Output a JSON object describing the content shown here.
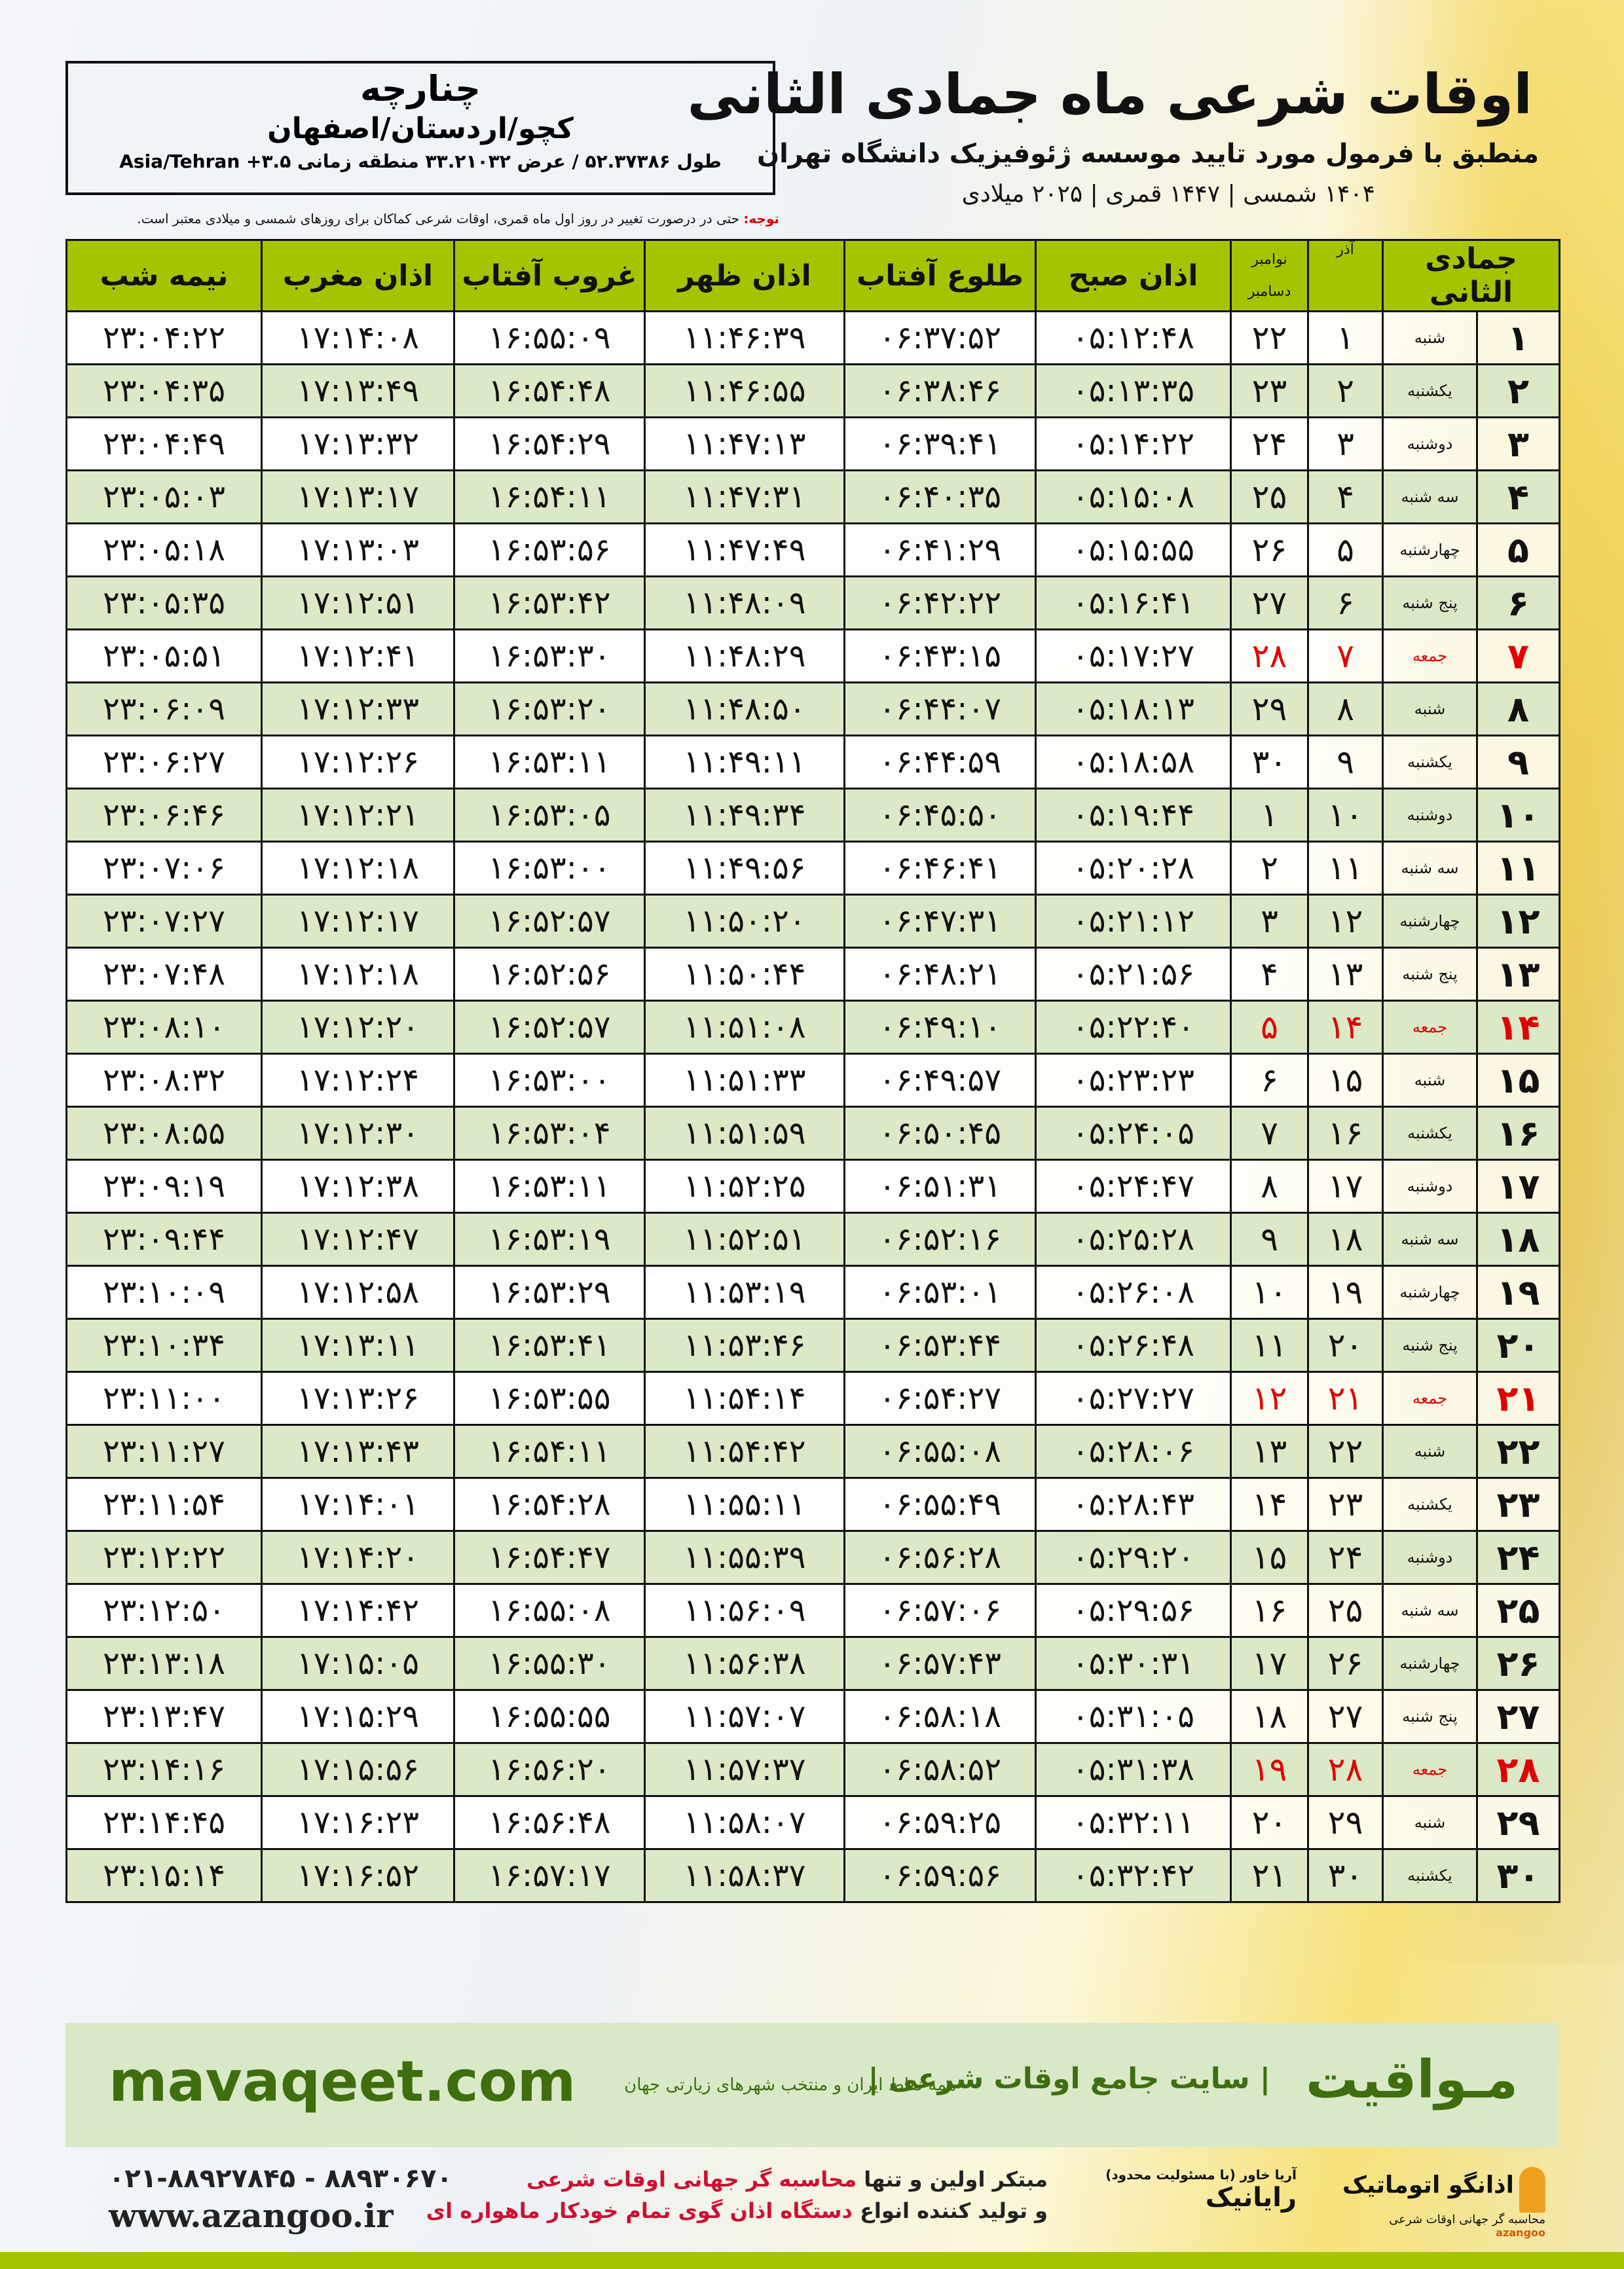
{
  "location": {
    "city": "چنارچه",
    "province": "کچو/اردستان/اصفهان",
    "coords": "طول ۵۲.۳۷۳۸۶ / عرض ۳۳.۲۱۰۳۲ منطقه زمانی ۳.۵+ Asia/Tehran"
  },
  "header": {
    "title": "اوقات شرعی ماه جمادی الثانی",
    "subtitle": "منطبق با فرمول مورد تایید موسسه ژئوفیزیک دانشگاه تهران",
    "years": "۱۴۰۴ شمسی | ۱۴۴۷ قمری | ۲۰۲۵ میلادی"
  },
  "note": {
    "label": "توجه:",
    "text": " حتی در درصورت تغییر در روز اول ماه قمری، اوقات شرعی کماکان برای روزهای شمسی و میلادی معتبر است."
  },
  "colors": {
    "header_green": "#a5c400",
    "alt_row": "#dbe9c6",
    "friday": "#e00000",
    "brand_green": "#3f6e0e"
  },
  "table": {
    "headers": {
      "month": "جمادی الثانی",
      "azar": "آذر",
      "greg_top": "نوامبر",
      "greg_bottom": "دسامبر",
      "fajr": "اذان صبح",
      "sunrise": "طلوع آفتاب",
      "dhuhr": "اذان ظهر",
      "sunset": "غروب آفتاب",
      "maghrib": "اذان مغرب",
      "midnight": "نیمه شب"
    },
    "rows": [
      [
        "۱",
        "شنبه",
        "۱",
        "۲۲",
        "۰۵:۱۲:۴۸",
        "۰۶:۳۷:۵۲",
        "۱۱:۴۶:۳۹",
        "۱۶:۵۵:۰۹",
        "۱۷:۱۴:۰۸",
        "۲۳:۰۴:۲۲"
      ],
      [
        "۲",
        "یکشنبه",
        "۲",
        "۲۳",
        "۰۵:۱۳:۳۵",
        "۰۶:۳۸:۴۶",
        "۱۱:۴۶:۵۵",
        "۱۶:۵۴:۴۸",
        "۱۷:۱۳:۴۹",
        "۲۳:۰۴:۳۵"
      ],
      [
        "۳",
        "دوشنبه",
        "۳",
        "۲۴",
        "۰۵:۱۴:۲۲",
        "۰۶:۳۹:۴۱",
        "۱۱:۴۷:۱۳",
        "۱۶:۵۴:۲۹",
        "۱۷:۱۳:۳۲",
        "۲۳:۰۴:۴۹"
      ],
      [
        "۴",
        "سه شنبه",
        "۴",
        "۲۵",
        "۰۵:۱۵:۰۸",
        "۰۶:۴۰:۳۵",
        "۱۱:۴۷:۳۱",
        "۱۶:۵۴:۱۱",
        "۱۷:۱۳:۱۷",
        "۲۳:۰۵:۰۳"
      ],
      [
        "۵",
        "چهارشنبه",
        "۵",
        "۲۶",
        "۰۵:۱۵:۵۵",
        "۰۶:۴۱:۲۹",
        "۱۱:۴۷:۴۹",
        "۱۶:۵۳:۵۶",
        "۱۷:۱۳:۰۳",
        "۲۳:۰۵:۱۸"
      ],
      [
        "۶",
        "پنج شنبه",
        "۶",
        "۲۷",
        "۰۵:۱۶:۴۱",
        "۰۶:۴۲:۲۲",
        "۱۱:۴۸:۰۹",
        "۱۶:۵۳:۴۲",
        "۱۷:۱۲:۵۱",
        "۲۳:۰۵:۳۵"
      ],
      [
        "۷",
        "جمعه",
        "۷",
        "۲۸",
        "۰۵:۱۷:۲۷",
        "۰۶:۴۳:۱۵",
        "۱۱:۴۸:۲۹",
        "۱۶:۵۳:۳۰",
        "۱۷:۱۲:۴۱",
        "۲۳:۰۵:۵۱"
      ],
      [
        "۸",
        "شنبه",
        "۸",
        "۲۹",
        "۰۵:۱۸:۱۳",
        "۰۶:۴۴:۰۷",
        "۱۱:۴۸:۵۰",
        "۱۶:۵۳:۲۰",
        "۱۷:۱۲:۳۳",
        "۲۳:۰۶:۰۹"
      ],
      [
        "۹",
        "یکشنبه",
        "۹",
        "۳۰",
        "۰۵:۱۸:۵۸",
        "۰۶:۴۴:۵۹",
        "۱۱:۴۹:۱۱",
        "۱۶:۵۳:۱۱",
        "۱۷:۱۲:۲۶",
        "۲۳:۰۶:۲۷"
      ],
      [
        "۱۰",
        "دوشنبه",
        "۱۰",
        "۱",
        "۰۵:۱۹:۴۴",
        "۰۶:۴۵:۵۰",
        "۱۱:۴۹:۳۴",
        "۱۶:۵۳:۰۵",
        "۱۷:۱۲:۲۱",
        "۲۳:۰۶:۴۶"
      ],
      [
        "۱۱",
        "سه شنبه",
        "۱۱",
        "۲",
        "۰۵:۲۰:۲۸",
        "۰۶:۴۶:۴۱",
        "۱۱:۴۹:۵۶",
        "۱۶:۵۳:۰۰",
        "۱۷:۱۲:۱۸",
        "۲۳:۰۷:۰۶"
      ],
      [
        "۱۲",
        "چهارشنبه",
        "۱۲",
        "۳",
        "۰۵:۲۱:۱۲",
        "۰۶:۴۷:۳۱",
        "۱۱:۵۰:۲۰",
        "۱۶:۵۲:۵۷",
        "۱۷:۱۲:۱۷",
        "۲۳:۰۷:۲۷"
      ],
      [
        "۱۳",
        "پنج شنبه",
        "۱۳",
        "۴",
        "۰۵:۲۱:۵۶",
        "۰۶:۴۸:۲۱",
        "۱۱:۵۰:۴۴",
        "۱۶:۵۲:۵۶",
        "۱۷:۱۲:۱۸",
        "۲۳:۰۷:۴۸"
      ],
      [
        "۱۴",
        "جمعه",
        "۱۴",
        "۵",
        "۰۵:۲۲:۴۰",
        "۰۶:۴۹:۱۰",
        "۱۱:۵۱:۰۸",
        "۱۶:۵۲:۵۷",
        "۱۷:۱۲:۲۰",
        "۲۳:۰۸:۱۰"
      ],
      [
        "۱۵",
        "شنبه",
        "۱۵",
        "۶",
        "۰۵:۲۳:۲۳",
        "۰۶:۴۹:۵۷",
        "۱۱:۵۱:۳۳",
        "۱۶:۵۳:۰۰",
        "۱۷:۱۲:۲۴",
        "۲۳:۰۸:۳۲"
      ],
      [
        "۱۶",
        "یکشنبه",
        "۱۶",
        "۷",
        "۰۵:۲۴:۰۵",
        "۰۶:۵۰:۴۵",
        "۱۱:۵۱:۵۹",
        "۱۶:۵۳:۰۴",
        "۱۷:۱۲:۳۰",
        "۲۳:۰۸:۵۵"
      ],
      [
        "۱۷",
        "دوشنبه",
        "۱۷",
        "۸",
        "۰۵:۲۴:۴۷",
        "۰۶:۵۱:۳۱",
        "۱۱:۵۲:۲۵",
        "۱۶:۵۳:۱۱",
        "۱۷:۱۲:۳۸",
        "۲۳:۰۹:۱۹"
      ],
      [
        "۱۸",
        "سه شنبه",
        "۱۸",
        "۹",
        "۰۵:۲۵:۲۸",
        "۰۶:۵۲:۱۶",
        "۱۱:۵۲:۵۱",
        "۱۶:۵۳:۱۹",
        "۱۷:۱۲:۴۷",
        "۲۳:۰۹:۴۴"
      ],
      [
        "۱۹",
        "چهارشنبه",
        "۱۹",
        "۱۰",
        "۰۵:۲۶:۰۸",
        "۰۶:۵۳:۰۱",
        "۱۱:۵۳:۱۹",
        "۱۶:۵۳:۲۹",
        "۱۷:۱۲:۵۸",
        "۲۳:۱۰:۰۹"
      ],
      [
        "۲۰",
        "پنج شنبه",
        "۲۰",
        "۱۱",
        "۰۵:۲۶:۴۸",
        "۰۶:۵۳:۴۴",
        "۱۱:۵۳:۴۶",
        "۱۶:۵۳:۴۱",
        "۱۷:۱۳:۱۱",
        "۲۳:۱۰:۳۴"
      ],
      [
        "۲۱",
        "جمعه",
        "۲۱",
        "۱۲",
        "۰۵:۲۷:۲۷",
        "۰۶:۵۴:۲۷",
        "۱۱:۵۴:۱۴",
        "۱۶:۵۳:۵۵",
        "۱۷:۱۳:۲۶",
        "۲۳:۱۱:۰۰"
      ],
      [
        "۲۲",
        "شنبه",
        "۲۲",
        "۱۳",
        "۰۵:۲۸:۰۶",
        "۰۶:۵۵:۰۸",
        "۱۱:۵۴:۴۲",
        "۱۶:۵۴:۱۱",
        "۱۷:۱۳:۴۳",
        "۲۳:۱۱:۲۷"
      ],
      [
        "۲۳",
        "یکشنبه",
        "۲۳",
        "۱۴",
        "۰۵:۲۸:۴۳",
        "۰۶:۵۵:۴۹",
        "۱۱:۵۵:۱۱",
        "۱۶:۵۴:۲۸",
        "۱۷:۱۴:۰۱",
        "۲۳:۱۱:۵۴"
      ],
      [
        "۲۴",
        "دوشنبه",
        "۲۴",
        "۱۵",
        "۰۵:۲۹:۲۰",
        "۰۶:۵۶:۲۸",
        "۱۱:۵۵:۳۹",
        "۱۶:۵۴:۴۷",
        "۱۷:۱۴:۲۰",
        "۲۳:۱۲:۲۲"
      ],
      [
        "۲۵",
        "سه شنبه",
        "۲۵",
        "۱۶",
        "۰۵:۲۹:۵۶",
        "۰۶:۵۷:۰۶",
        "۱۱:۵۶:۰۹",
        "۱۶:۵۵:۰۸",
        "۱۷:۱۴:۴۲",
        "۲۳:۱۲:۵۰"
      ],
      [
        "۲۶",
        "چهارشنبه",
        "۲۶",
        "۱۷",
        "۰۵:۳۰:۳۱",
        "۰۶:۵۷:۴۳",
        "۱۱:۵۶:۳۸",
        "۱۶:۵۵:۳۰",
        "۱۷:۱۵:۰۵",
        "۲۳:۱۳:۱۸"
      ],
      [
        "۲۷",
        "پنج شنبه",
        "۲۷",
        "۱۸",
        "۰۵:۳۱:۰۵",
        "۰۶:۵۸:۱۸",
        "۱۱:۵۷:۰۷",
        "۱۶:۵۵:۵۵",
        "۱۷:۱۵:۲۹",
        "۲۳:۱۳:۴۷"
      ],
      [
        "۲۸",
        "جمعه",
        "۲۸",
        "۱۹",
        "۰۵:۳۱:۳۸",
        "۰۶:۵۸:۵۲",
        "۱۱:۵۷:۳۷",
        "۱۶:۵۶:۲۰",
        "۱۷:۱۵:۵۶",
        "۲۳:۱۴:۱۶"
      ],
      [
        "۲۹",
        "شنبه",
        "۲۹",
        "۲۰",
        "۰۵:۳۲:۱۱",
        "۰۶:۵۹:۲۵",
        "۱۱:۵۸:۰۷",
        "۱۶:۵۶:۴۸",
        "۱۷:۱۶:۲۳",
        "۲۳:۱۴:۴۵"
      ],
      [
        "۳۰",
        "یکشنبه",
        "۳۰",
        "۲۱",
        "۰۵:۳۲:۴۲",
        "۰۶:۵۹:۵۶",
        "۱۱:۵۸:۳۷",
        "۱۶:۵۷:۱۷",
        "۱۷:۱۶:۵۲",
        "۲۳:۱۵:۱۴"
      ]
    ]
  },
  "footer": {
    "brand": "مـواقیت",
    "slogan": "| سایت جامع اوقات شرعی |",
    "slogan_sub": "همه نقاط ایران و منتخب شهرهای زیارتی جهان",
    "site": "mavaqeet.com",
    "phone": "۰۲۱-۸۸۹۲۷۸۴۵ - ۸۸۹۳۰۶۷۰",
    "web": "www.azangoo.ir",
    "promo_1a": "مبتکر اولین و تنها ",
    "promo_1b": "محاسبه گر جهانی اوقات شرعی",
    "promo_2a": "و تولید کننده انواع ",
    "promo_2b": "دستگاه اذان گوی تمام خودکار ماهواره ای",
    "logo_rayanik": "رایانیک",
    "logo_rayanik_sub": "آریا خاور (با مسئولیت محدود)",
    "logo_azangoo": "اذانگو اتوماتیک",
    "logo_azangoo_sub": "محاسبه گر جهانی اوقات شرعی",
    "logo_azangoo_en": "azangoo"
  }
}
